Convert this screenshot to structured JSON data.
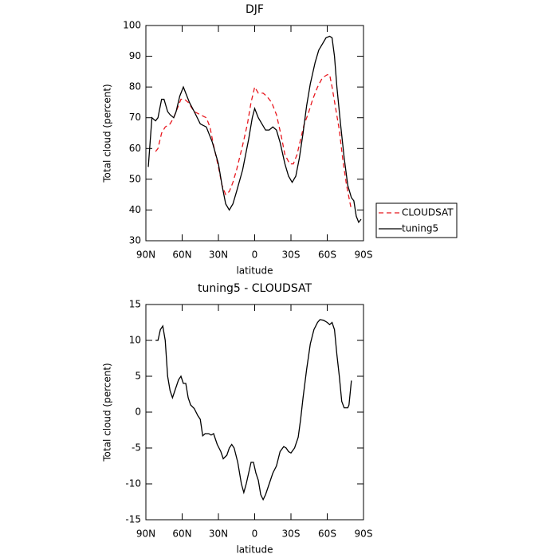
{
  "chart_data": [
    {
      "type": "line",
      "title": "DJF",
      "xlabel": "latitude",
      "ylabel": "Total cloud (percent)",
      "xlim": [
        90,
        -90
      ],
      "ylim": [
        30,
        100
      ],
      "xticks": [
        {
          "value": 90,
          "label": "90N"
        },
        {
          "value": 60,
          "label": "60N"
        },
        {
          "value": 30,
          "label": "30N"
        },
        0,
        {
          "value": -30,
          "label": "30S"
        },
        {
          "value": -60,
          "label": "60S"
        },
        {
          "value": -90,
          "label": "90S"
        }
      ],
      "yticks": [
        30,
        40,
        50,
        60,
        70,
        80,
        90,
        100
      ],
      "legend": "right",
      "series": [
        {
          "name": "CLOUDSAT",
          "color": "#e8171e",
          "dashed": true,
          "x": [
            82,
            80,
            77,
            74,
            70,
            67,
            64,
            61,
            58,
            55,
            50,
            45,
            40,
            37,
            34,
            30,
            27,
            24,
            21,
            18,
            15,
            10,
            6,
            3,
            0,
            -3,
            -7,
            -10,
            -14,
            -18,
            -22,
            -25,
            -29,
            -32,
            -35,
            -38,
            -41,
            -44,
            -48,
            -52,
            -56,
            -60,
            -62,
            -64,
            -67,
            -70,
            -73,
            -76,
            -80
          ],
          "values": [
            59,
            60,
            65,
            67,
            68,
            70,
            73,
            76,
            76,
            75,
            72,
            71,
            70,
            67,
            61,
            54,
            48,
            45,
            46,
            49,
            53,
            61,
            68,
            75,
            80,
            78,
            78,
            77,
            75,
            71,
            64,
            58,
            55,
            55,
            58,
            63,
            68,
            71,
            76,
            80,
            83,
            84,
            84,
            80,
            73,
            66,
            56,
            48,
            40
          ]
        },
        {
          "name": "tuning5",
          "color": "#000000",
          "dashed": false,
          "x": [
            88,
            85,
            82,
            80,
            77,
            75,
            72,
            70,
            67,
            65,
            62,
            59,
            57,
            54,
            50,
            45,
            40,
            35,
            30,
            27,
            24,
            21,
            18,
            15,
            10,
            5,
            2,
            0,
            -3,
            -6,
            -9,
            -12,
            -15,
            -18,
            -21,
            -25,
            -28,
            -31,
            -34,
            -37,
            -40,
            -43,
            -46,
            -50,
            -53,
            -56,
            -59,
            -62,
            -64,
            -66,
            -68,
            -71,
            -74,
            -77,
            -80,
            -82,
            -84,
            -86,
            -88
          ],
          "values": [
            54,
            70,
            69,
            70,
            76,
            76,
            72,
            71,
            70,
            72,
            77,
            80,
            78,
            75,
            72,
            68,
            67,
            62,
            55,
            48,
            42,
            40,
            42,
            46,
            53,
            63,
            70,
            73,
            70,
            68,
            66,
            66,
            67,
            66,
            62,
            55,
            51,
            49,
            51,
            57,
            65,
            74,
            81,
            88,
            92,
            94,
            96,
            96.5,
            96,
            90,
            80,
            68,
            57,
            48,
            44,
            43,
            38,
            36,
            37
          ]
        }
      ]
    },
    {
      "type": "line",
      "title": "tuning5 - CLOUDSAT",
      "xlabel": "latitude",
      "ylabel": "Total cloud (percent)",
      "xlim": [
        90,
        -90
      ],
      "ylim": [
        -15,
        15
      ],
      "xticks": [
        {
          "value": 90,
          "label": "90N"
        },
        {
          "value": 60,
          "label": "60N"
        },
        {
          "value": 30,
          "label": "30N"
        },
        0,
        {
          "value": -30,
          "label": "30S"
        },
        {
          "value": -60,
          "label": "60S"
        },
        {
          "value": -90,
          "label": "90S"
        }
      ],
      "yticks": [
        -15,
        -10,
        -5,
        0,
        5,
        10,
        15
      ],
      "series": [
        {
          "color": "#000000",
          "dashed": false,
          "x": [
            82,
            80,
            78,
            76,
            74,
            72,
            70,
            68,
            66,
            63,
            61,
            59,
            57,
            55,
            53,
            50,
            47,
            45,
            43,
            41,
            38,
            36,
            34,
            31,
            28,
            26,
            23,
            21,
            19,
            17,
            14,
            11,
            9,
            7,
            5,
            3,
            1,
            -1,
            -3,
            -5,
            -7,
            -9,
            -12,
            -15,
            -18,
            -21,
            -24,
            -26,
            -28,
            -30,
            -33,
            -36,
            -38,
            -40,
            -43,
            -46,
            -49,
            -52,
            -54,
            -57,
            -60,
            -62,
            -64,
            -66,
            -68,
            -70,
            -72,
            -74,
            -77,
            -78,
            -80
          ],
          "values": [
            10,
            10,
            11.5,
            12,
            10,
            5,
            3,
            2,
            3,
            4.5,
            5,
            4,
            4,
            2,
            1,
            0.5,
            -0.5,
            -1,
            -3.3,
            -3,
            -3,
            -3.2,
            -3,
            -4.5,
            -5.5,
            -6.5,
            -6,
            -5,
            -4.5,
            -5,
            -7,
            -10,
            -11.2,
            -10,
            -8.5,
            -7,
            -7,
            -8.5,
            -9.5,
            -11.5,
            -12.2,
            -11.5,
            -10,
            -8.5,
            -7.5,
            -5.5,
            -4.8,
            -5,
            -5.5,
            -5.7,
            -5,
            -3.5,
            -1,
            2,
            6,
            9.5,
            11.5,
            12.5,
            12.9,
            12.8,
            12.5,
            12.2,
            12.5,
            11.5,
            8,
            5,
            1.5,
            0.6,
            0.6,
            1,
            4.4
          ]
        }
      ]
    }
  ]
}
